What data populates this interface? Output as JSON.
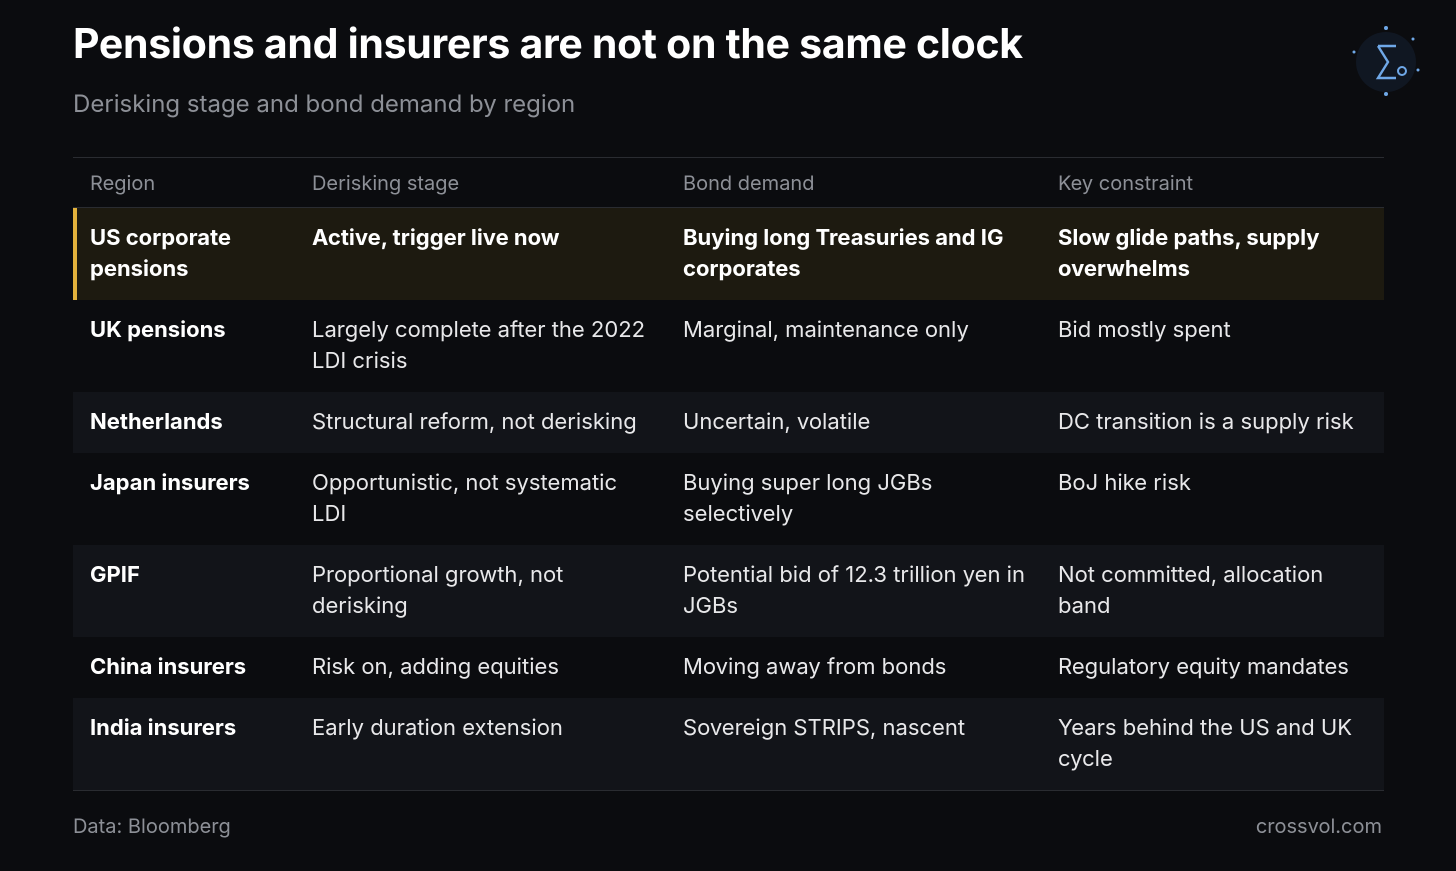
{
  "header": {
    "title": "Pensions and insurers are not on the same clock",
    "subtitle": "Derisking stage and bond demand by region"
  },
  "table": {
    "columns": [
      "Region",
      "Derisking stage",
      "Bond demand",
      "Key constraint"
    ],
    "rows": [
      [
        "US corporate pensions",
        "Active, trigger live now",
        "Buying long Treasuries and IG corporates",
        "Slow glide paths, supply overwhelms"
      ],
      [
        "UK pensions",
        "Largely complete after the 2022 LDI crisis",
        "Marginal, maintenance only",
        "Bid mostly spent"
      ],
      [
        "Netherlands",
        "Structural reform, not derisking",
        "Uncertain, volatile",
        "DC transition is a supply risk"
      ],
      [
        "Japan insurers",
        "Opportunistic, not systematic LDI",
        "Buying super long JGBs selectively",
        "BoJ hike risk"
      ],
      [
        "GPIF",
        "Proportional growth, not derisking",
        "Potential bid of 12.3 trillion yen in JGBs",
        "Not committed, allocation band"
      ],
      [
        "China insurers",
        "Risk on, adding equities",
        "Moving away from bonds",
        "Regulatory equity mandates"
      ],
      [
        "India insurers",
        "Early duration extension",
        "Sovereign STRIPS, nascent",
        "Years behind the US and UK cycle"
      ]
    ]
  },
  "footer": {
    "source": "Data: Bloomberg",
    "site": "crossvol.com"
  }
}
